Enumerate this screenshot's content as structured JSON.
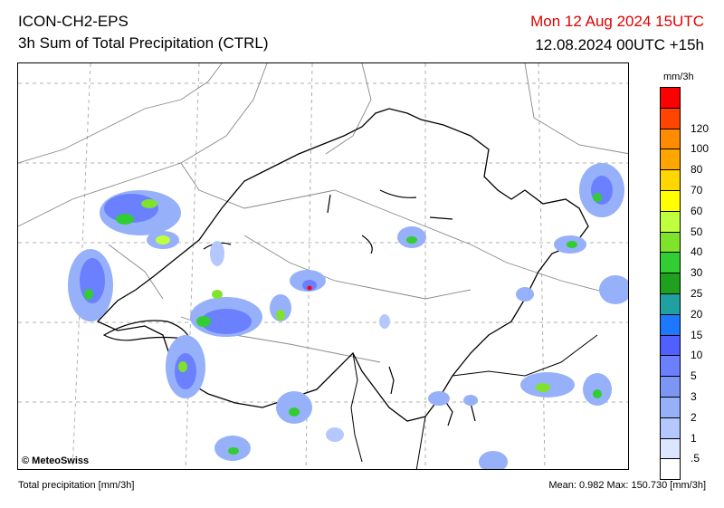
{
  "header": {
    "model": "ICON-CH2-EPS",
    "product": "3h Sum of Total Precipitation (CTRL)",
    "valid_time": "Mon 12 Aug 2024 15UTC",
    "run_info": "12.08.2024 00UTC +15h"
  },
  "map": {
    "copyright": "© MeteoSwiss",
    "land_color": "#ffffff",
    "border_color": "#000000",
    "lake_color": "#000000"
  },
  "legend": {
    "unit": "mm/3h",
    "levels": [
      {
        "label": "",
        "color": "#ff0000"
      },
      {
        "label": "120",
        "color": "#ff4500"
      },
      {
        "label": "100",
        "color": "#ff8c00"
      },
      {
        "label": "80",
        "color": "#ffa500"
      },
      {
        "label": "70",
        "color": "#ffd700"
      },
      {
        "label": "60",
        "color": "#ffff00"
      },
      {
        "label": "50",
        "color": "#c0ff3e"
      },
      {
        "label": "40",
        "color": "#7ee32a"
      },
      {
        "label": "30",
        "color": "#32cd32"
      },
      {
        "label": "25",
        "color": "#1fa01f"
      },
      {
        "label": "20",
        "color": "#20a0a0"
      },
      {
        "label": "15",
        "color": "#1e78ff"
      },
      {
        "label": "10",
        "color": "#5060ff"
      },
      {
        "label": "5",
        "color": "#6a80ff"
      },
      {
        "label": "3",
        "color": "#7d96f5"
      },
      {
        "label": "2",
        "color": "#96b0fa"
      },
      {
        "label": "1",
        "color": "#b4c8ff"
      },
      {
        "label": ".5",
        "color": "#dce6ff"
      },
      {
        "label": "",
        "color": "#ffffff"
      }
    ]
  },
  "footer": {
    "variable": "Total precipitation [mm/3h]",
    "stats": "Mean:   0.982 Max: 150.730 [mm/3h]"
  }
}
